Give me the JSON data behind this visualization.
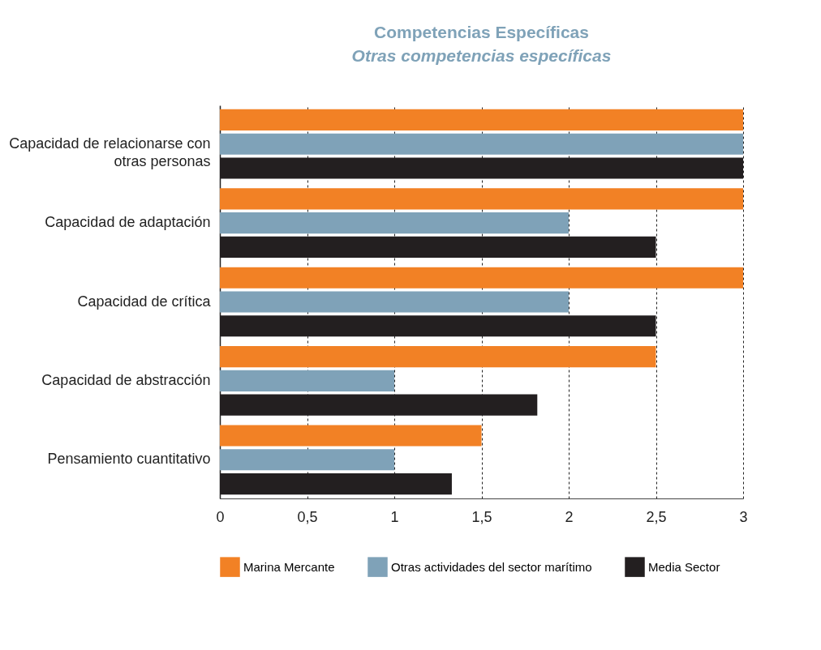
{
  "chart_data": {
    "type": "bar",
    "orientation": "horizontal",
    "title": "Competencias Específicas",
    "subtitle": "Otras competencias específicas",
    "categories": [
      "Capacidad de relacionarse con otras personas",
      "Capacidad de adaptación",
      "Capacidad de crítica",
      "Capacidad de abstracción",
      "Pensamiento cuantitativo"
    ],
    "series": [
      {
        "name": "Marina Mercante",
        "color": "#f28125",
        "values": [
          3,
          3,
          3,
          2.5,
          1.5
        ]
      },
      {
        "name": "Otras actividades del sector marítimo",
        "color": "#7fa2b8",
        "values": [
          3,
          2,
          2,
          1,
          1
        ]
      },
      {
        "name": "Media Sector",
        "color": "#231f20",
        "values": [
          3,
          2.5,
          2.5,
          1.82,
          1.33
        ]
      }
    ],
    "xlim": [
      0,
      3
    ],
    "xticks": [
      0,
      {
        "value": 0.5,
        "label": "0,5"
      },
      1,
      {
        "value": 1.5,
        "label": "1,5"
      },
      2,
      {
        "value": 2.5,
        "label": "2,5"
      },
      3
    ],
    "grid": "x",
    "legend": "bottom"
  }
}
